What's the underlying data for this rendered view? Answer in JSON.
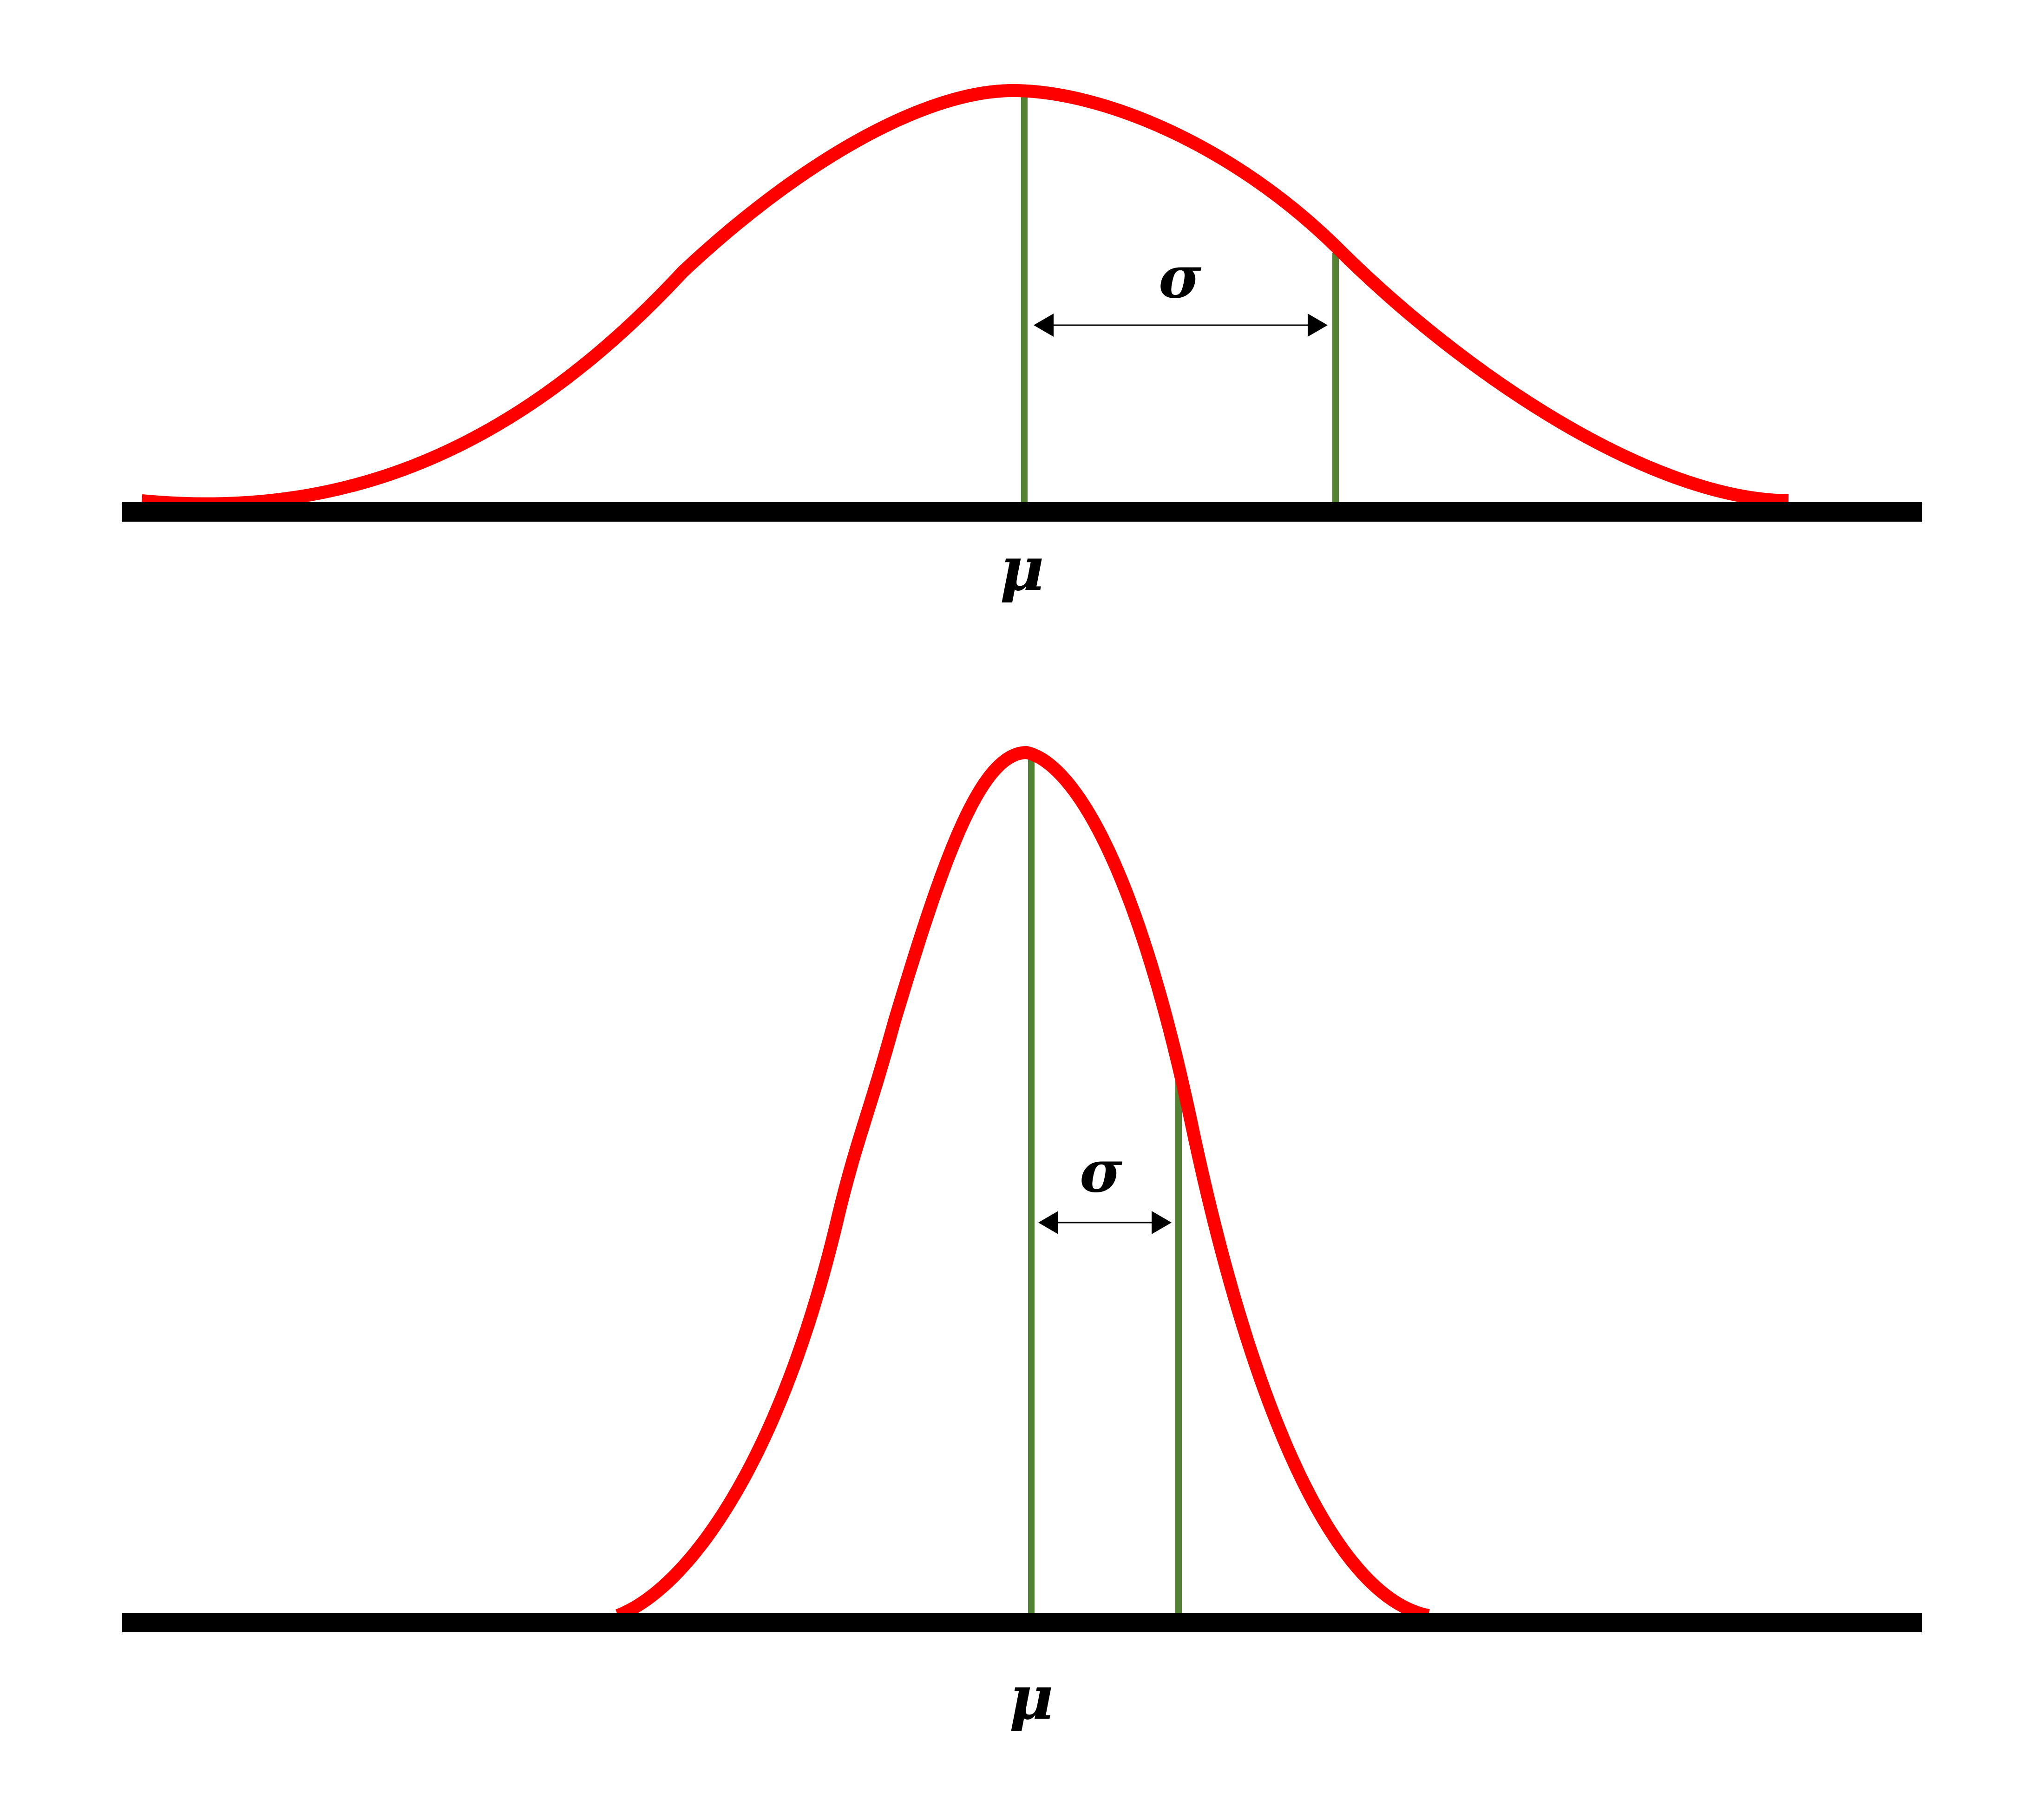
{
  "colors": {
    "curve": "#ff0000",
    "guide": "#548235",
    "axis": "#000000",
    "arrow": "#000000"
  },
  "panels": [
    {
      "name": "wide-distribution",
      "mean_label": "μ",
      "sigma_label": "σ"
    },
    {
      "name": "narrow-distribution",
      "mean_label": "μ",
      "sigma_label": "σ"
    }
  ]
}
